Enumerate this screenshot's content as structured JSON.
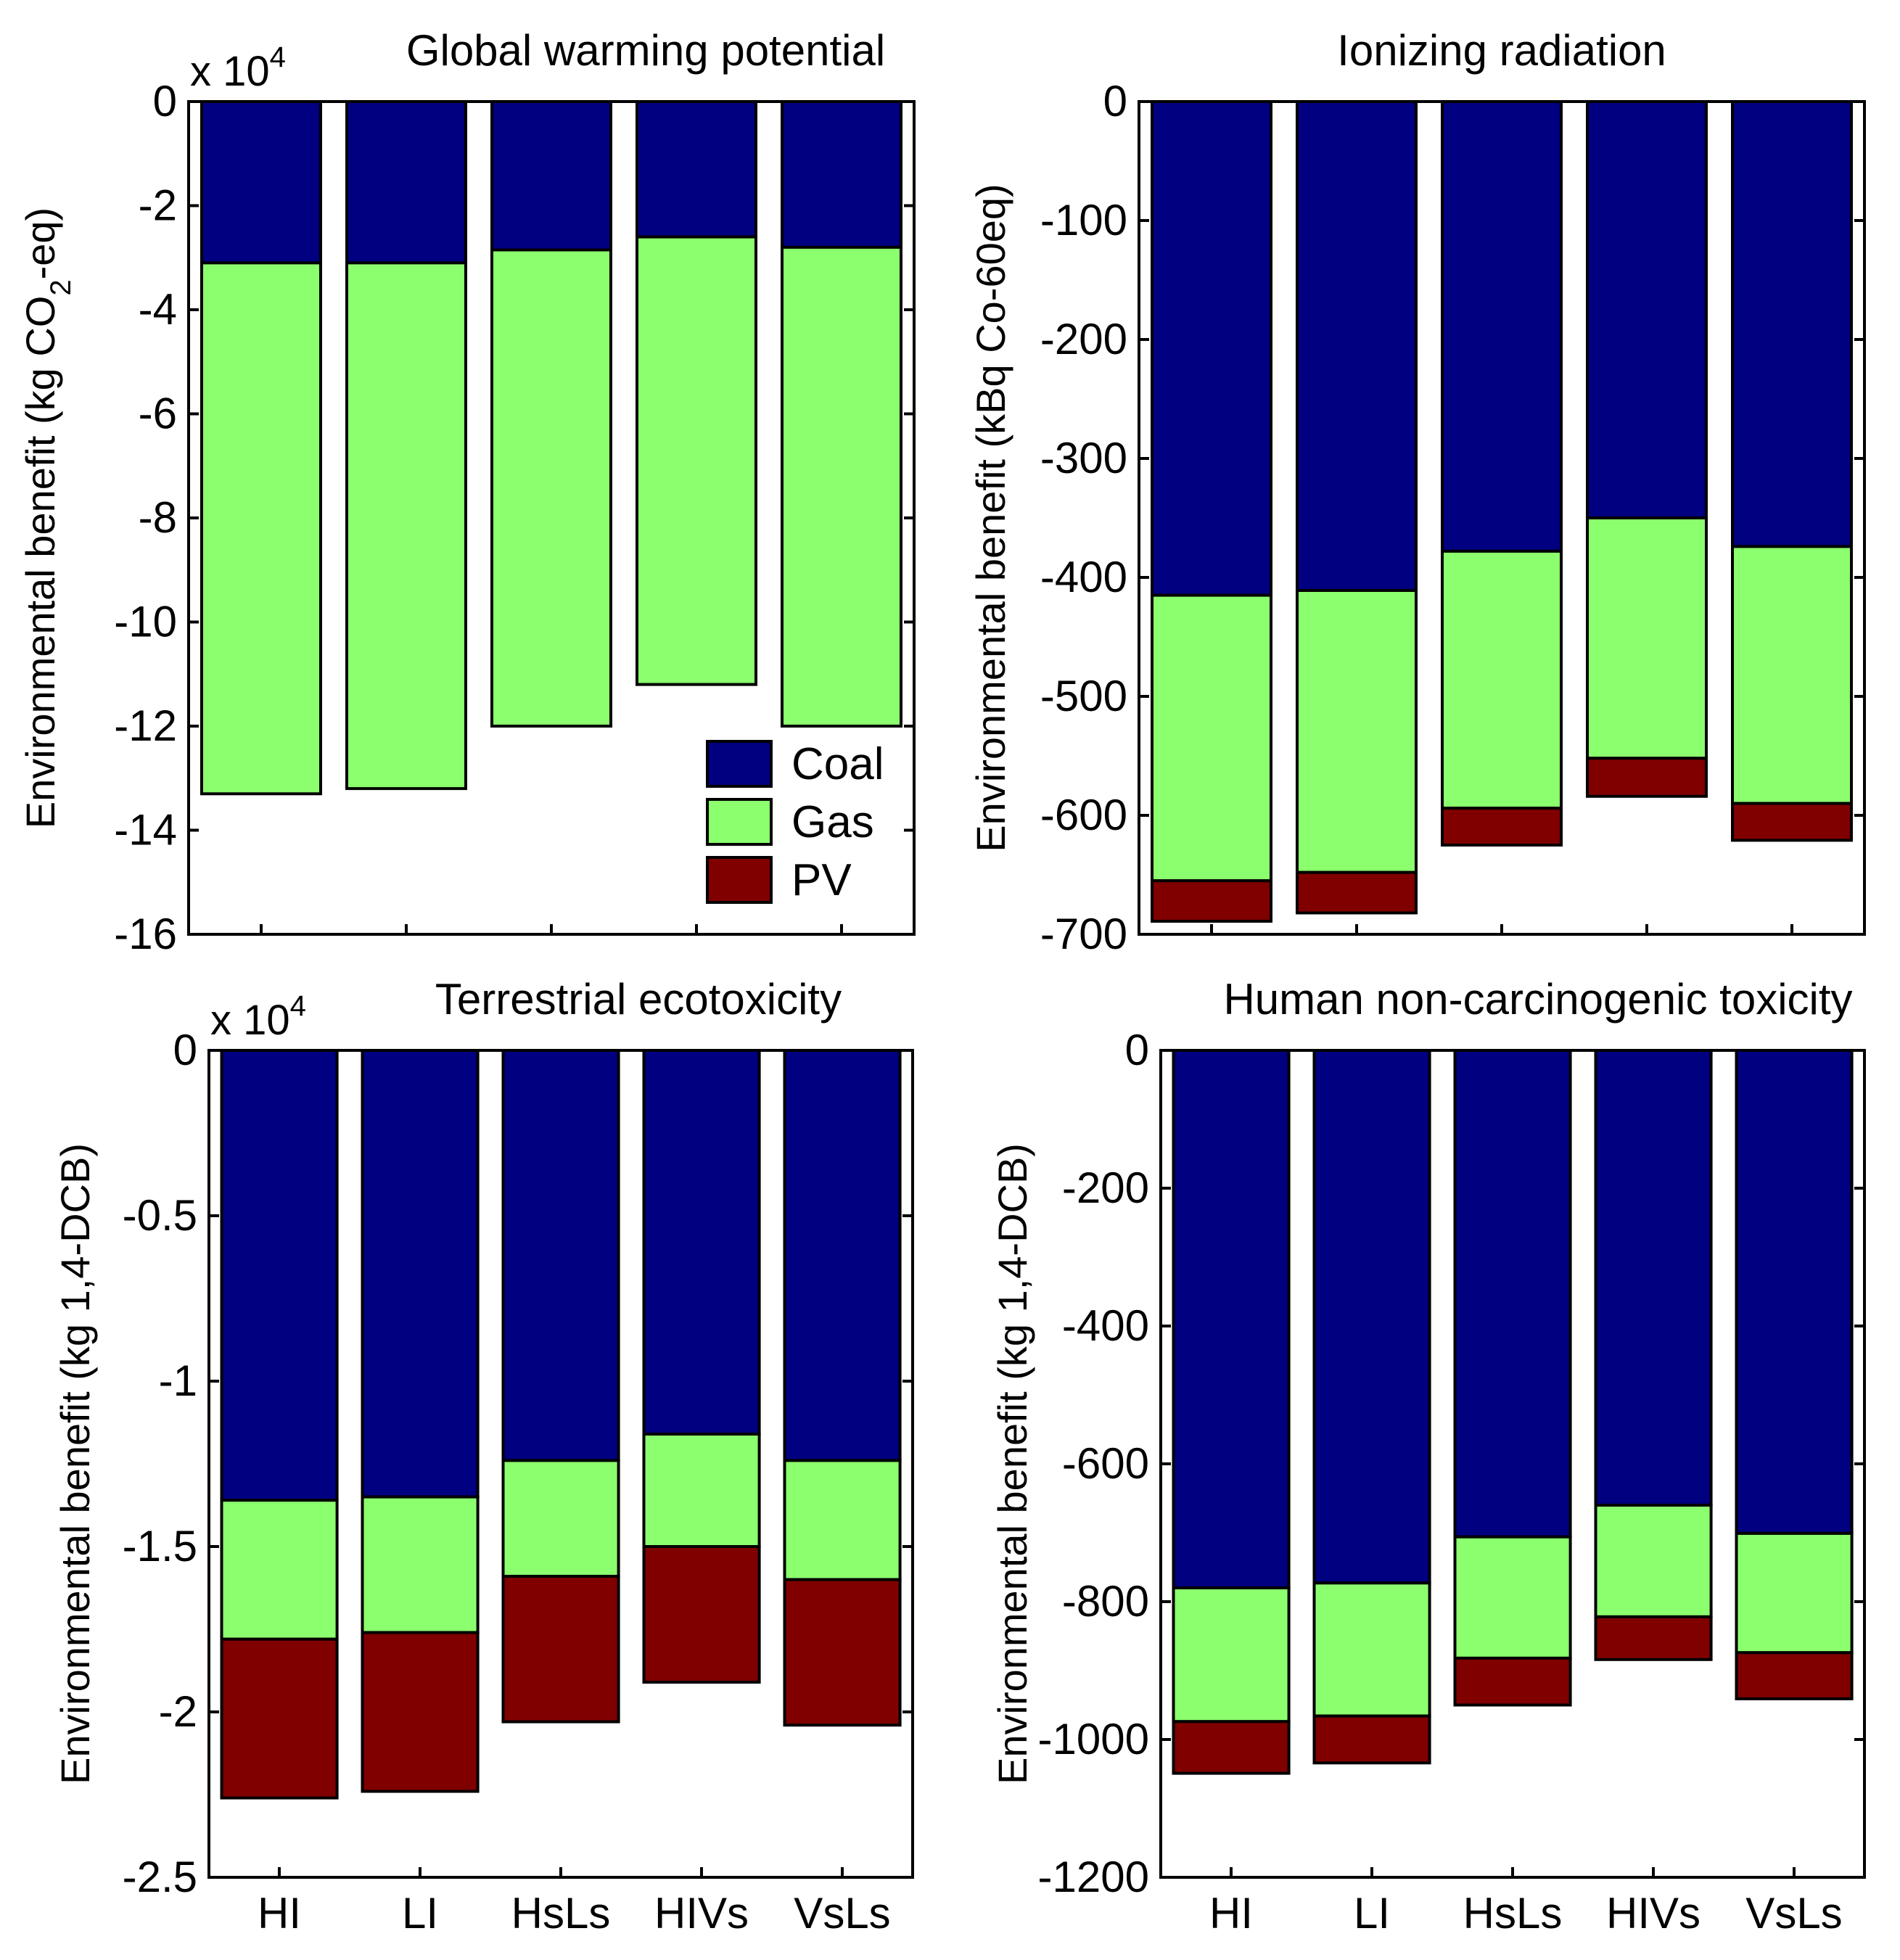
{
  "legend": [
    {
      "name": "Coal",
      "color": "#000080"
    },
    {
      "name": "Gas",
      "color": "#8cff6e"
    },
    {
      "name": "PV",
      "color": "#800000"
    }
  ],
  "chart_data": [
    {
      "type": "bar",
      "stacked": true,
      "title": "Global warming potential",
      "ylabel_parts": [
        "Environmental benefit (kg CO",
        "2",
        "-eq)"
      ],
      "multiplier": {
        "base": "x 10",
        "exp": "4"
      },
      "categories": [
        "HI",
        "LI",
        "HsLs",
        "HIVs",
        "VsLs"
      ],
      "show_xticks": false,
      "ylim": [
        -16,
        0
      ],
      "yticks": [
        0,
        -2,
        -4,
        -6,
        -8,
        -10,
        -12,
        -14,
        -16
      ],
      "ytick_labels": [
        "0",
        "-2",
        "-4",
        "-6",
        "-8",
        "-10",
        "-12",
        "-14",
        "-16"
      ],
      "legend_position": "bottom-right",
      "series": [
        {
          "name": "Coal",
          "values": [
            -3.1,
            -3.1,
            -2.85,
            -2.6,
            -2.8
          ]
        },
        {
          "name": "Gas",
          "values": [
            -10.2,
            -10.1,
            -9.15,
            -8.6,
            -9.2
          ]
        },
        {
          "name": "PV",
          "values": [
            0,
            0,
            0,
            0,
            0
          ]
        }
      ]
    },
    {
      "type": "bar",
      "stacked": true,
      "title": "Ionizing radiation",
      "ylabel_parts": [
        "Environmental benefit (kBq Co-60eq)"
      ],
      "multiplier": null,
      "categories": [
        "HI",
        "LI",
        "HsLs",
        "HIVs",
        "VsLs"
      ],
      "show_xticks": false,
      "ylim": [
        -700,
        0
      ],
      "yticks": [
        0,
        -100,
        -200,
        -300,
        -400,
        -500,
        -600,
        -700
      ],
      "ytick_labels": [
        "0",
        "-100",
        "-200",
        "-300",
        "-400",
        "-500",
        "-600",
        "-700"
      ],
      "series": [
        {
          "name": "Coal",
          "values": [
            -415,
            -411,
            -378,
            -350,
            -374
          ]
        },
        {
          "name": "Gas",
          "values": [
            -240,
            -237,
            -216,
            -202,
            -216
          ]
        },
        {
          "name": "PV",
          "values": [
            -34,
            -34,
            -31,
            -32,
            -31
          ]
        }
      ]
    },
    {
      "type": "bar",
      "stacked": true,
      "title": "Terrestrial ecotoxicity",
      "ylabel_parts": [
        "Environmental benefit (kg 1,4-DCB)"
      ],
      "multiplier": {
        "base": "x 10",
        "exp": "4"
      },
      "categories": [
        "HI",
        "LI",
        "HsLs",
        "HIVs",
        "VsLs"
      ],
      "show_xticks": true,
      "ylim": [
        -2.5,
        0
      ],
      "yticks": [
        0,
        -0.5,
        -1,
        -1.5,
        -2,
        -2.5
      ],
      "ytick_labels": [
        "0",
        "-0.5",
        "-1",
        "-1.5",
        "-2",
        "-2.5"
      ],
      "series": [
        {
          "name": "Coal",
          "values": [
            -1.36,
            -1.35,
            -1.24,
            -1.16,
            -1.24
          ]
        },
        {
          "name": "Gas",
          "values": [
            -0.42,
            -0.41,
            -0.35,
            -0.34,
            -0.36
          ]
        },
        {
          "name": "PV",
          "values": [
            -0.48,
            -0.48,
            -0.44,
            -0.41,
            -0.44
          ]
        }
      ]
    },
    {
      "type": "bar",
      "stacked": true,
      "title": "Human non-carcinogenic toxicity",
      "ylabel_parts": [
        "Environmental benefit (kg 1,4-DCB)"
      ],
      "multiplier": null,
      "categories": [
        "HI",
        "LI",
        "HsLs",
        "HIVs",
        "VsLs"
      ],
      "show_xticks": true,
      "ylim": [
        -1200,
        0
      ],
      "yticks": [
        0,
        -200,
        -400,
        -600,
        -800,
        -1000,
        -1200
      ],
      "ytick_labels": [
        "0",
        "-200",
        "-400",
        "-600",
        "-800",
        "-1000",
        "-1200"
      ],
      "series": [
        {
          "name": "Coal",
          "values": [
            -780,
            -773,
            -706,
            -660,
            -701
          ]
        },
        {
          "name": "Gas",
          "values": [
            -194,
            -193,
            -176,
            -162,
            -173
          ]
        },
        {
          "name": "PV",
          "values": [
            -75,
            -68,
            -68,
            -62,
            -67
          ]
        }
      ]
    }
  ]
}
